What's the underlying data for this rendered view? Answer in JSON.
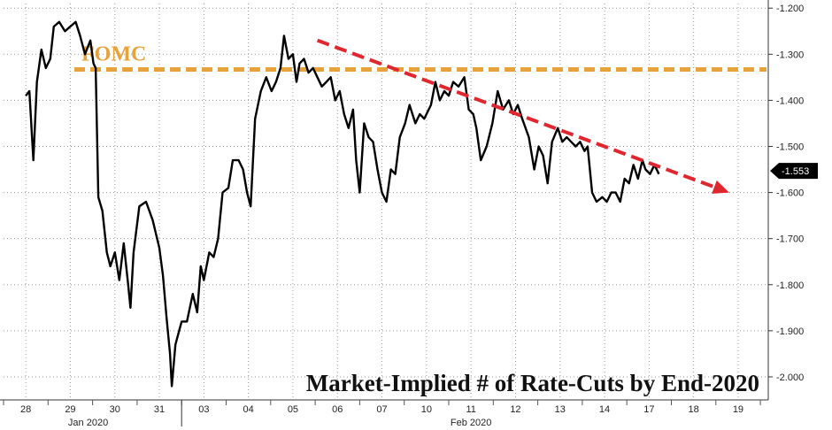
{
  "chart_data": {
    "type": "line",
    "title": "Market-Implied # of Rate-Cuts by End-2020",
    "annotation": "FOMC",
    "y_ticks": [
      "-1.200",
      "-1.300",
      "-1.400",
      "-1.500",
      "-1.600",
      "-1.700",
      "-1.800",
      "-1.900",
      "-2.000"
    ],
    "y_tick_values": [
      -1.2,
      -1.3,
      -1.4,
      -1.5,
      -1.6,
      -1.7,
      -1.8,
      -1.9,
      -2.0
    ],
    "ylim": [
      -2.05,
      -1.19
    ],
    "last_value_label": "-1.553",
    "last_value": -1.553,
    "fomc_level": -1.333,
    "x_categories": [
      "28",
      "29",
      "30",
      "31",
      "03",
      "04",
      "05",
      "06",
      "07",
      "10",
      "11",
      "12",
      "13",
      "14",
      "17",
      "18",
      "19"
    ],
    "month_labels": [
      "Jan 2020",
      "Feb 2020"
    ],
    "trend_arrow": {
      "from": [
        6.55,
        -1.27
      ],
      "to": [
        15.8,
        -1.6
      ]
    },
    "grid": true,
    "series": [
      {
        "color": "#000000",
        "points": [
          [
            0.0,
            -1.39
          ],
          [
            0.08,
            -1.38
          ],
          [
            0.17,
            -1.53
          ],
          [
            0.25,
            -1.36
          ],
          [
            0.35,
            -1.29
          ],
          [
            0.45,
            -1.33
          ],
          [
            0.55,
            -1.31
          ],
          [
            0.63,
            -1.24
          ],
          [
            0.75,
            -1.23
          ],
          [
            0.88,
            -1.25
          ],
          [
            1.0,
            -1.24
          ],
          [
            1.12,
            -1.23
          ],
          [
            1.22,
            -1.26
          ],
          [
            1.33,
            -1.3
          ],
          [
            1.45,
            -1.27
          ],
          [
            1.52,
            -1.32
          ],
          [
            1.57,
            -1.33
          ],
          [
            1.63,
            -1.61
          ],
          [
            1.72,
            -1.64
          ],
          [
            1.82,
            -1.73
          ],
          [
            1.9,
            -1.76
          ],
          [
            2.0,
            -1.73
          ],
          [
            2.1,
            -1.79
          ],
          [
            2.2,
            -1.71
          ],
          [
            2.3,
            -1.8
          ],
          [
            2.35,
            -1.85
          ],
          [
            2.42,
            -1.73
          ],
          [
            2.55,
            -1.63
          ],
          [
            2.7,
            -1.62
          ],
          [
            2.85,
            -1.66
          ],
          [
            3.0,
            -1.72
          ],
          [
            3.08,
            -1.78
          ],
          [
            3.16,
            -1.87
          ],
          [
            3.24,
            -1.95
          ],
          [
            3.28,
            -2.02
          ],
          [
            3.36,
            -1.93
          ],
          [
            3.5,
            -1.88
          ],
          [
            3.62,
            -1.88
          ],
          [
            3.75,
            -1.82
          ],
          [
            3.85,
            -1.86
          ],
          [
            3.93,
            -1.76
          ],
          [
            4.0,
            -1.79
          ],
          [
            4.12,
            -1.73
          ],
          [
            4.22,
            -1.74
          ],
          [
            4.32,
            -1.7
          ],
          [
            4.42,
            -1.6
          ],
          [
            4.55,
            -1.59
          ],
          [
            4.65,
            -1.53
          ],
          [
            4.78,
            -1.53
          ],
          [
            4.88,
            -1.55
          ],
          [
            4.97,
            -1.6
          ],
          [
            5.05,
            -1.63
          ],
          [
            5.15,
            -1.44
          ],
          [
            5.28,
            -1.38
          ],
          [
            5.4,
            -1.35
          ],
          [
            5.52,
            -1.38
          ],
          [
            5.62,
            -1.36
          ],
          [
            5.72,
            -1.33
          ],
          [
            5.8,
            -1.26
          ],
          [
            5.9,
            -1.31
          ],
          [
            6.0,
            -1.3
          ],
          [
            6.08,
            -1.36
          ],
          [
            6.15,
            -1.32
          ],
          [
            6.25,
            -1.31
          ],
          [
            6.35,
            -1.34
          ],
          [
            6.45,
            -1.33
          ],
          [
            6.55,
            -1.35
          ],
          [
            6.65,
            -1.37
          ],
          [
            6.75,
            -1.36
          ],
          [
            6.85,
            -1.35
          ],
          [
            6.95,
            -1.4
          ],
          [
            7.05,
            -1.38
          ],
          [
            7.15,
            -1.43
          ],
          [
            7.25,
            -1.46
          ],
          [
            7.35,
            -1.42
          ],
          [
            7.42,
            -1.53
          ],
          [
            7.5,
            -1.6
          ],
          [
            7.6,
            -1.45
          ],
          [
            7.7,
            -1.48
          ],
          [
            7.8,
            -1.49
          ],
          [
            7.9,
            -1.55
          ],
          [
            8.0,
            -1.6
          ],
          [
            8.1,
            -1.62
          ],
          [
            8.2,
            -1.55
          ],
          [
            8.3,
            -1.56
          ],
          [
            8.4,
            -1.48
          ],
          [
            8.52,
            -1.45
          ],
          [
            8.62,
            -1.41
          ],
          [
            8.75,
            -1.45
          ],
          [
            8.85,
            -1.43
          ],
          [
            8.95,
            -1.44
          ],
          [
            9.1,
            -1.41
          ],
          [
            9.2,
            -1.36
          ],
          [
            9.3,
            -1.4
          ],
          [
            9.4,
            -1.38
          ],
          [
            9.5,
            -1.39
          ],
          [
            9.6,
            -1.36
          ],
          [
            9.72,
            -1.37
          ],
          [
            9.85,
            -1.35
          ],
          [
            9.95,
            -1.42
          ],
          [
            10.05,
            -1.43
          ],
          [
            10.12,
            -1.46
          ],
          [
            10.22,
            -1.53
          ],
          [
            10.35,
            -1.5
          ],
          [
            10.48,
            -1.45
          ],
          [
            10.6,
            -1.38
          ],
          [
            10.72,
            -1.42
          ],
          [
            10.85,
            -1.4
          ],
          [
            10.95,
            -1.43
          ],
          [
            11.05,
            -1.41
          ],
          [
            11.15,
            -1.44
          ],
          [
            11.3,
            -1.48
          ],
          [
            11.42,
            -1.55
          ],
          [
            11.52,
            -1.5
          ],
          [
            11.62,
            -1.52
          ],
          [
            11.72,
            -1.58
          ],
          [
            11.82,
            -1.49
          ],
          [
            11.95,
            -1.46
          ],
          [
            12.05,
            -1.49
          ],
          [
            12.15,
            -1.48
          ],
          [
            12.25,
            -1.49
          ],
          [
            12.35,
            -1.5
          ],
          [
            12.45,
            -1.49
          ],
          [
            12.55,
            -1.51
          ],
          [
            12.62,
            -1.5
          ],
          [
            12.72,
            -1.6
          ],
          [
            12.82,
            -1.62
          ],
          [
            12.95,
            -1.61
          ],
          [
            13.05,
            -1.62
          ],
          [
            13.15,
            -1.6
          ],
          [
            13.25,
            -1.6
          ],
          [
            13.35,
            -1.62
          ],
          [
            13.45,
            -1.57
          ],
          [
            13.55,
            -1.58
          ],
          [
            13.65,
            -1.54
          ],
          [
            13.75,
            -1.57
          ],
          [
            13.85,
            -1.53
          ],
          [
            13.92,
            -1.55
          ],
          [
            14.02,
            -1.56
          ],
          [
            14.12,
            -1.54
          ],
          [
            14.22,
            -1.56
          ]
        ]
      }
    ]
  }
}
